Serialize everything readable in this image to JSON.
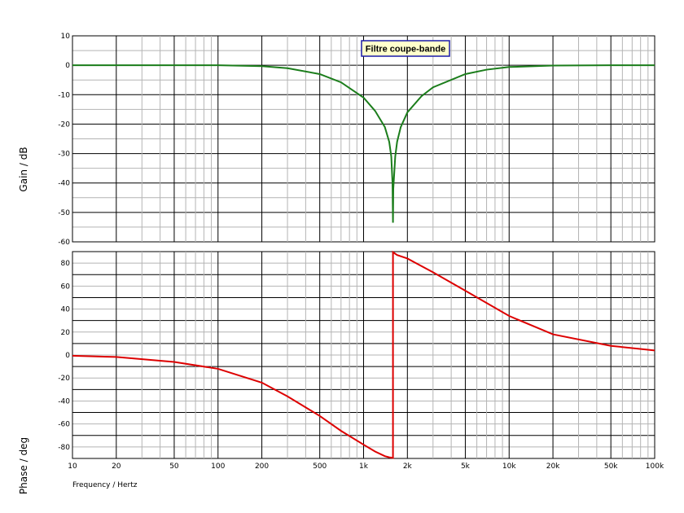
{
  "chart_data": [
    {
      "type": "line",
      "title": "Filtre coupe-bande",
      "ylabel": "Gain / dB",
      "xscale": "log",
      "xlim": [
        10,
        100000
      ],
      "ylim": [
        -60,
        10
      ],
      "yticks": [
        10,
        0,
        -10,
        -20,
        -30,
        -40,
        -50,
        -60
      ],
      "grid": true,
      "colors": {
        "series": "#1b7d1b",
        "title_border": "#1a1aa8",
        "title_bg": "#ffffcc"
      },
      "series": [
        {
          "x": [
            10,
            20,
            50,
            100,
            200,
            300,
            500,
            700,
            1000,
            1200,
            1400,
            1500,
            1550,
            1580,
            1592,
            1600,
            1650,
            1700,
            1800,
            2000,
            2500,
            3000,
            5000,
            7000,
            10000,
            20000,
            50000,
            100000
          ],
          "values": [
            0,
            0,
            0,
            0,
            -0.3,
            -1,
            -3,
            -5.8,
            -11,
            -15.5,
            -21,
            -26,
            -31,
            -40,
            -53.5,
            -42,
            -31,
            -26,
            -21,
            -16,
            -10.5,
            -7.5,
            -3,
            -1.5,
            -0.6,
            -0.1,
            0,
            0
          ]
        }
      ]
    },
    {
      "type": "line",
      "xlabel": "Frequency / Hertz",
      "ylabel": "Phase / deg",
      "xscale": "log",
      "xlim": [
        10,
        100000
      ],
      "ylim": [
        -90,
        90
      ],
      "yticks": [
        80,
        60,
        40,
        20,
        0,
        -20,
        -40,
        -60,
        -80
      ],
      "xticks": [
        10,
        20,
        50,
        100,
        200,
        500,
        1000,
        2000,
        5000,
        10000,
        20000,
        50000,
        100000
      ],
      "xtick_labels": [
        "10",
        "20",
        "50",
        "100",
        "200",
        "500",
        "1k",
        "2k",
        "5k",
        "10k",
        "20k",
        "50k",
        "100k"
      ],
      "grid": true,
      "colors": {
        "series": "#dd0000"
      },
      "series": [
        {
          "x": [
            10,
            20,
            50,
            100,
            200,
            300,
            500,
            700,
            1000,
            1200,
            1400,
            1500,
            1592,
            1592.01,
            1700,
            2000,
            3000,
            5000,
            10000,
            20000,
            50000,
            100000
          ],
          "values": [
            -0.6,
            -1.7,
            -6,
            -12,
            -24,
            -36,
            -53,
            -66,
            -78,
            -84,
            -88,
            -89,
            -89.5,
            89.5,
            87,
            84,
            72,
            56,
            34,
            18,
            8,
            4
          ]
        }
      ]
    }
  ]
}
